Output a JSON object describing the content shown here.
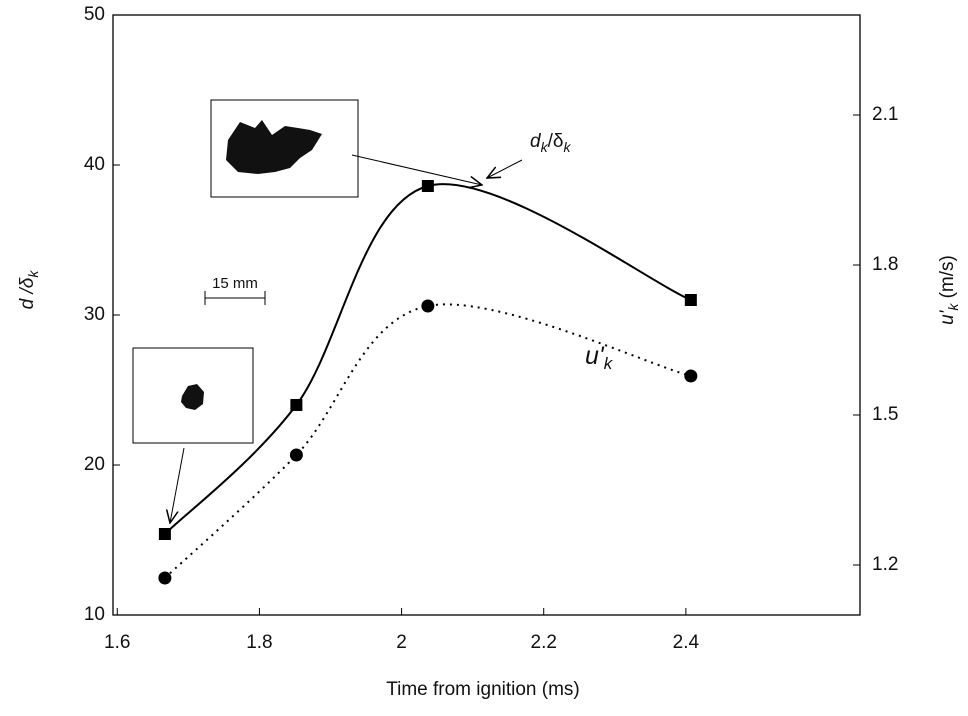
{
  "chart_data": {
    "type": "line",
    "x": [
      1.667,
      1.852,
      2.037,
      2.407
    ],
    "series": [
      {
        "color": "#000000",
        "marker": "square",
        "dash": "solid",
        "values": [
          15.4,
          24.0,
          38.6,
          31.0
        ]
      },
      {
        "color": "#000000",
        "marker": "circle",
        "dash": "dotted",
        "axis": "y2",
        "values": [
          1.174,
          1.42,
          1.718,
          1.578
        ]
      }
    ],
    "xlabel": "Time from ignition (ms)",
    "ylabel": {
      "main": "d /δ",
      "sub": "k"
    },
    "y2label": {
      "main": "u'",
      "sub": "k",
      "unit": " (m/s)"
    },
    "xlim": [
      1.594,
      2.645
    ],
    "xticks": [
      1.6,
      1.8,
      2.0,
      2.2,
      2.4
    ],
    "ylim": [
      10,
      50
    ],
    "yticks": [
      10,
      20,
      30,
      40,
      50
    ],
    "y2lim": [
      1.1,
      2.3
    ],
    "y2ticks": [
      1.2,
      1.5,
      1.8,
      2.1
    ],
    "annotations": {
      "dk_label": [
        "d",
        "k",
        "/δ",
        "k"
      ],
      "uk_label": [
        "u'",
        "k"
      ],
      "scale": "15 mm"
    }
  }
}
